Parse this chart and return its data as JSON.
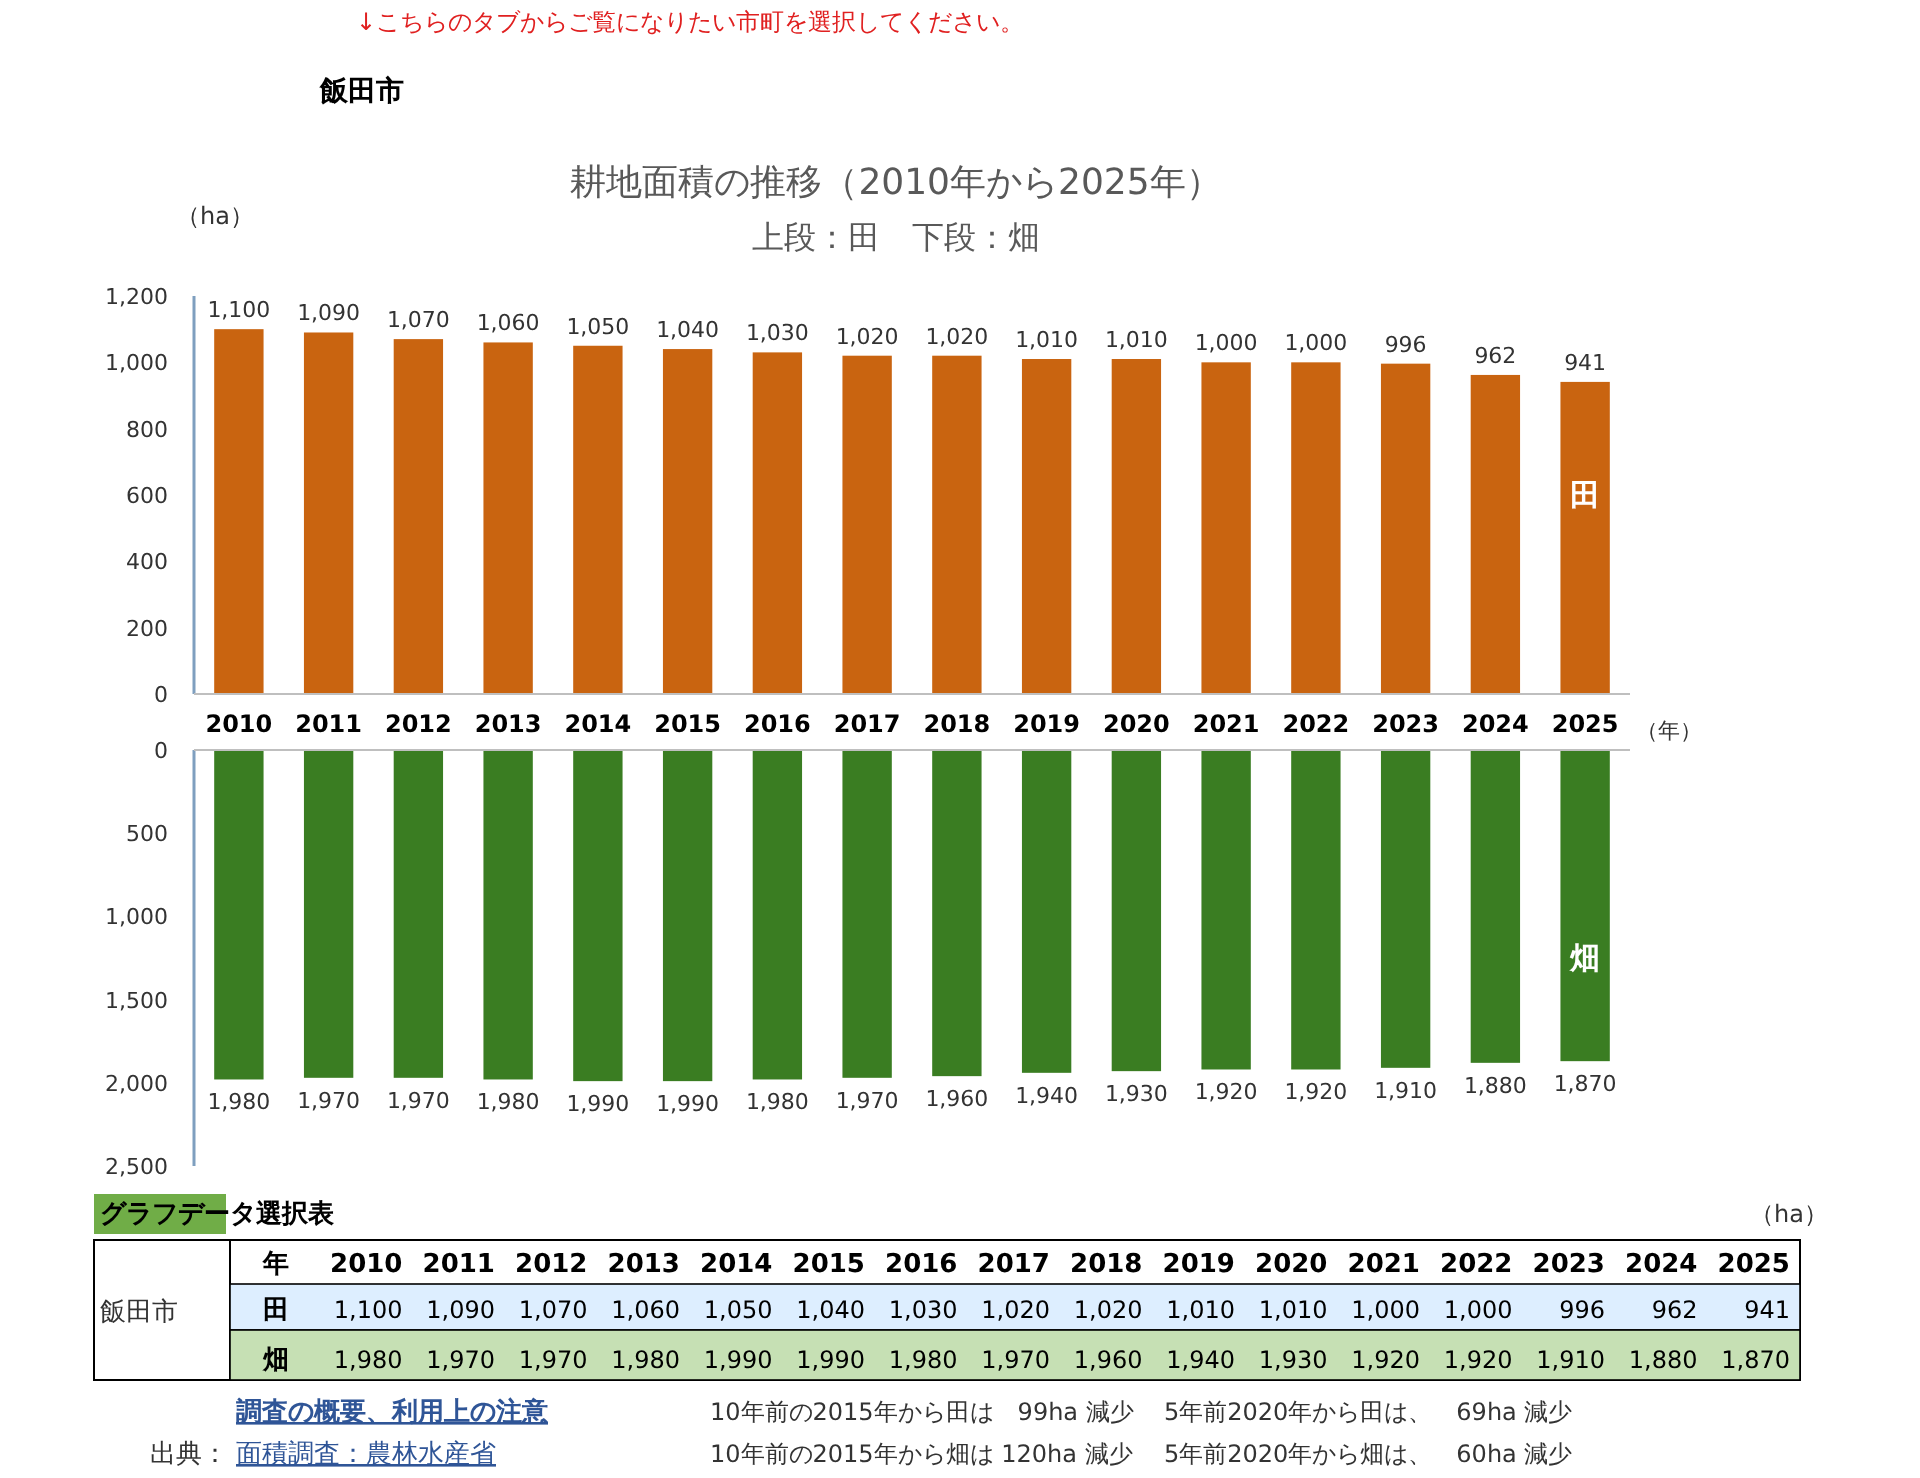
{
  "chart_data": [
    {
      "type": "bar",
      "title": "耕地面積の推移（2010年から2025年）",
      "subtitle": "上段：田　下段：畑",
      "ylabel": "（ha）",
      "xlabel": "（年）",
      "categories": [
        "2010",
        "2011",
        "2012",
        "2013",
        "2014",
        "2015",
        "2016",
        "2017",
        "2018",
        "2019",
        "2020",
        "2021",
        "2022",
        "2023",
        "2024",
        "2025"
      ],
      "series": [
        {
          "name": "田",
          "color": "#c96410",
          "values": [
            1100,
            1090,
            1070,
            1060,
            1050,
            1040,
            1030,
            1020,
            1020,
            1010,
            1010,
            1000,
            1000,
            996,
            962,
            941
          ],
          "value_labels": [
            "1,100",
            "1,090",
            "1,070",
            "1,060",
            "1,050",
            "1,040",
            "1,030",
            "1,020",
            "1,020",
            "1,010",
            "1,010",
            "1,000",
            "1,000",
            "996",
            "962",
            "941"
          ]
        }
      ],
      "ylim": [
        0,
        1200
      ],
      "yticks": [
        0,
        200,
        400,
        600,
        800,
        {
          "value": 1000,
          "label": "1,000"
        },
        {
          "value": 1200,
          "label": "1,200"
        }
      ],
      "annotations": [
        "↓こちらのタブからご覧になりたい市町を選択してください。",
        "飯田市"
      ]
    },
    {
      "type": "bar",
      "categories": [
        "2010",
        "2011",
        "2012",
        "2013",
        "2014",
        "2015",
        "2016",
        "2017",
        "2018",
        "2019",
        "2020",
        "2021",
        "2022",
        "2023",
        "2024",
        "2025"
      ],
      "series": [
        {
          "name": "畑",
          "color": "#3a7d22",
          "values": [
            1980,
            1970,
            1970,
            1980,
            1990,
            1990,
            1980,
            1970,
            1960,
            1940,
            1930,
            1920,
            1920,
            1910,
            1880,
            1870
          ],
          "value_labels": [
            "1,980",
            "1,970",
            "1,970",
            "1,980",
            "1,990",
            "1,990",
            "1,980",
            "1,970",
            "1,960",
            "1,940",
            "1,930",
            "1,920",
            "1,920",
            "1,910",
            "1,880",
            "1,870"
          ]
        }
      ],
      "tick_labels": "y",
      "ylim": [
        2500,
        0
      ],
      "yticks": [
        0,
        500,
        {
          "value": 1000,
          "label": "1,000"
        },
        {
          "value": 1500,
          "label": "1,500"
        },
        {
          "value": 2000,
          "label": "2,000"
        },
        {
          "value": 2500,
          "label": "2,500"
        }
      ],
      "annotations": [
        "グラフデータ選択表",
        "（ha）",
        "飯田市",
        "年",
        "調査の概要、利用上の注意",
        "出典：",
        "面積調査：農林水産省",
        "10年前の2015年から田は　99ha 減少",
        "5年前2020年から田は、　69ha 減少",
        "10年前の2015年から畑は 120ha 減少",
        "5年前2020年から畑は、　60ha 減少"
      ]
    }
  ]
}
